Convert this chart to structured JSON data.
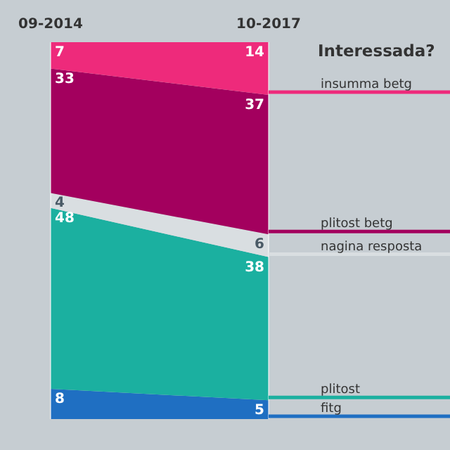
{
  "chart_data": {
    "type": "area",
    "stacked": true,
    "title": "Interessada?",
    "categories": [
      "09-2014",
      "10-2017"
    ],
    "data_labels": true,
    "grid": "x",
    "legend": "right",
    "series": [
      {
        "name": "fitg",
        "color": "#1f6fc2",
        "values": [
          8,
          5
        ]
      },
      {
        "name": "plitost",
        "color": "#1bb0a0",
        "values": [
          48,
          38
        ]
      },
      {
        "name": "nagina resposta",
        "color": "#d9dee1",
        "values": [
          4,
          6
        ]
      },
      {
        "name": "plitost betg",
        "color": "#a3005e",
        "values": [
          33,
          37
        ]
      },
      {
        "name": "insumma betg",
        "color": "#ee2a7b",
        "values": [
          7,
          14
        ]
      }
    ]
  }
}
